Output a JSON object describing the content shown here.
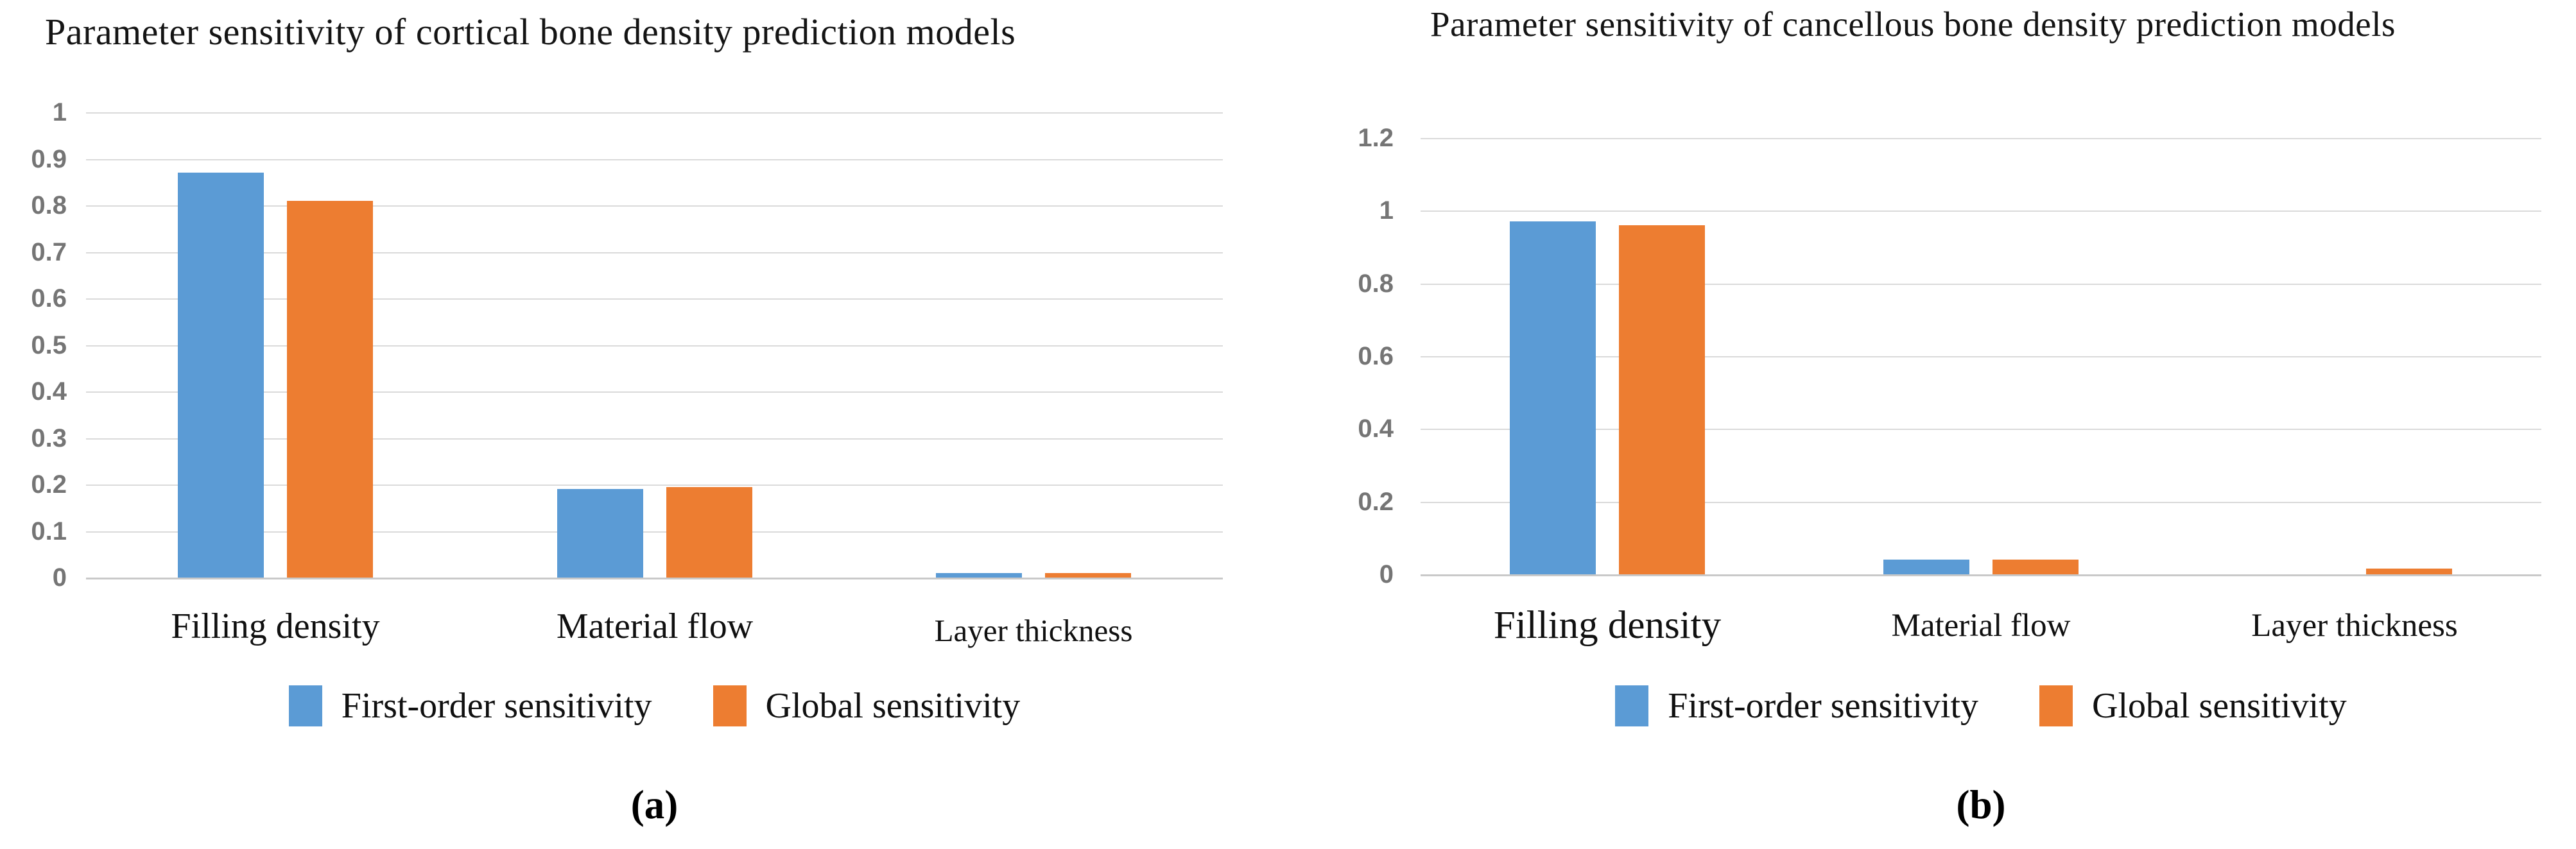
{
  "colors": {
    "series_blue": "#5B9BD5",
    "series_orange": "#ED7D31",
    "gridline": "#dadada",
    "baseline": "#c9c9c9",
    "axis_text": "#757575",
    "text": "#141414"
  },
  "chart_data": [
    {
      "type": "bar",
      "panel": "a",
      "title": "Parameter sensitivity of cortical bone density prediction models",
      "caption": "(a)",
      "categories": [
        "Filling density",
        "Material flow",
        "Layer thickness"
      ],
      "series": [
        {
          "name": "First-order sensitivity",
          "color": "#5B9BD5",
          "values": [
            0.87,
            0.19,
            0.01
          ]
        },
        {
          "name": "Global sensitivity",
          "color": "#ED7D31",
          "values": [
            0.81,
            0.195,
            0.01
          ]
        }
      ],
      "ylim": [
        0,
        1
      ],
      "y_ticks": [
        {
          "label": "1",
          "value": 1
        },
        {
          "label": "0.9",
          "value": 0.9
        },
        {
          "label": "0.8",
          "value": 0.8
        },
        {
          "label": "0.7",
          "value": 0.7
        },
        {
          "label": "0.6",
          "value": 0.6
        },
        {
          "label": "0.5",
          "value": 0.5
        },
        {
          "label": "0.4",
          "value": 0.4
        },
        {
          "label": "0.3",
          "value": 0.3
        },
        {
          "label": "0.2",
          "value": 0.2
        },
        {
          "label": "0.1",
          "value": 0.1
        },
        {
          "label": "0",
          "value": 0
        }
      ],
      "grid": true,
      "legend_position": "bottom"
    },
    {
      "type": "bar",
      "panel": "b",
      "title": "Parameter sensitivity of cancellous bone density prediction models",
      "caption": "(b)",
      "categories": [
        "Filling density",
        "Material flow",
        "Layer thickness"
      ],
      "series": [
        {
          "name": "First-order sensitivity",
          "color": "#5B9BD5",
          "values": [
            0.97,
            0.04,
            0
          ]
        },
        {
          "name": "Global sensitivity",
          "color": "#ED7D31",
          "values": [
            0.96,
            0.04,
            0.015
          ]
        }
      ],
      "ylim": [
        0,
        1.2
      ],
      "y_ticks": [
        {
          "label": "1.2",
          "value": 1.2
        },
        {
          "label": "1",
          "value": 1
        },
        {
          "label": "0.8",
          "value": 0.8
        },
        {
          "label": "0.6",
          "value": 0.6
        },
        {
          "label": "0.4",
          "value": 0.4
        },
        {
          "label": "0.2",
          "value": 0.2
        },
        {
          "label": "0",
          "value": 0
        }
      ],
      "grid": true,
      "legend_position": "bottom"
    }
  ]
}
